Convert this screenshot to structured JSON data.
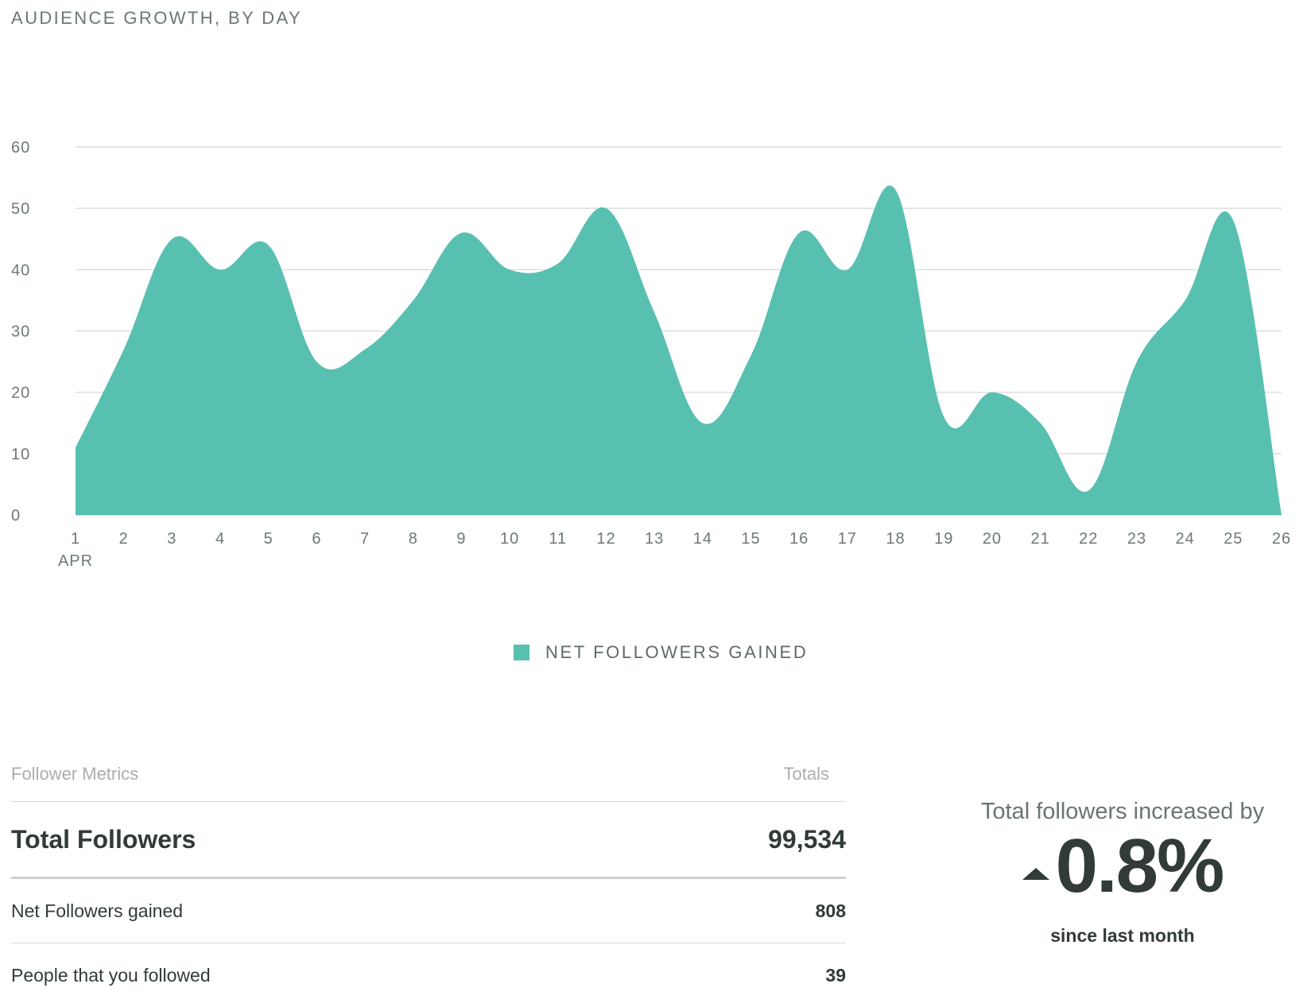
{
  "chart_data": {
    "type": "area",
    "title": "AUDIENCE GROWTH, BY DAY",
    "x": [
      "1",
      "2",
      "3",
      "4",
      "5",
      "6",
      "7",
      "8",
      "9",
      "10",
      "11",
      "12",
      "13",
      "14",
      "15",
      "16",
      "17",
      "18",
      "19",
      "20",
      "21",
      "22",
      "23",
      "24",
      "25",
      "26"
    ],
    "x_sublabel": "APR",
    "series": [
      {
        "name": "NET FOLLOWERS GAINED",
        "color": "#58c0b1",
        "values": [
          11,
          27,
          45,
          40,
          44,
          25,
          27,
          35,
          46,
          40,
          41,
          50,
          33,
          15,
          26,
          46,
          40,
          53,
          16,
          20,
          15,
          4,
          25,
          35,
          48,
          0
        ]
      }
    ],
    "yticks": [
      0,
      10,
      20,
      30,
      40,
      50,
      60
    ],
    "ylim": [
      0,
      60
    ],
    "grid": true,
    "legend_position": "bottom-center"
  },
  "metrics": {
    "header_label": "Follower Metrics",
    "header_totals": "Totals",
    "rows": [
      {
        "label": "Total Followers",
        "value": "99,534"
      },
      {
        "label": "Net Followers gained",
        "value": "808"
      },
      {
        "label": "People that you followed",
        "value": "39"
      }
    ]
  },
  "summary": {
    "caption": "Total followers increased by",
    "value": "0.8%",
    "subcaption": "since last month",
    "icon": "triangle-up-icon"
  }
}
